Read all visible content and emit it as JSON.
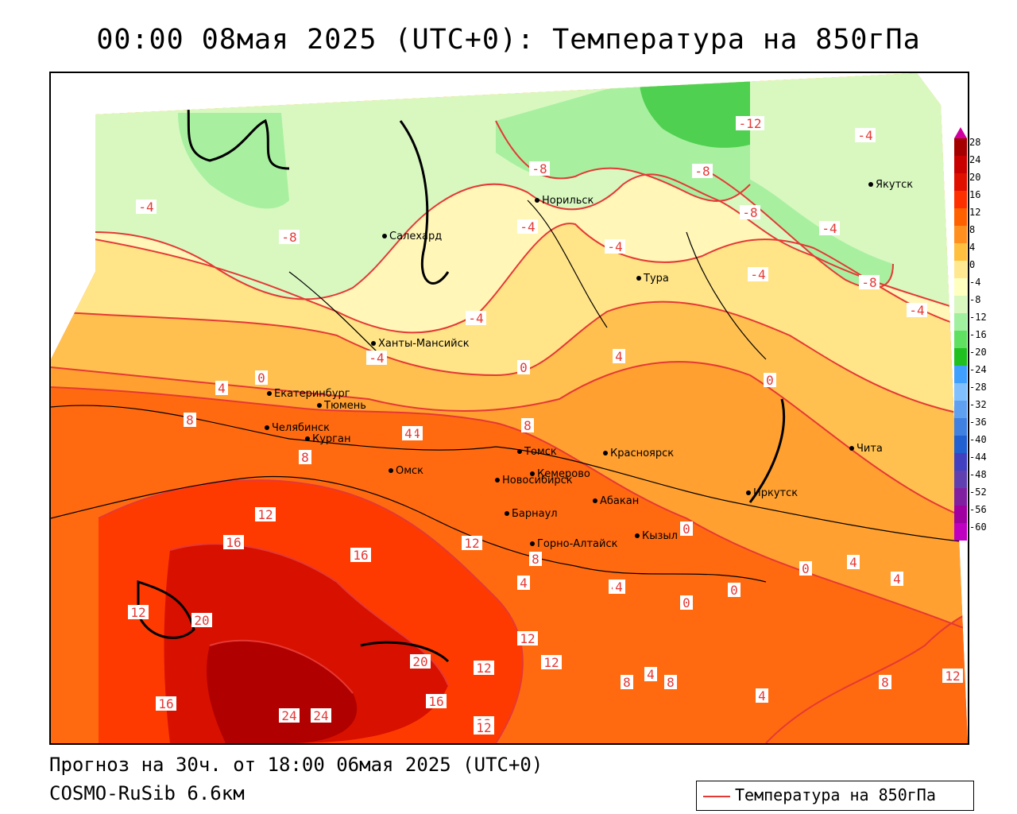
{
  "title": "00:00 08мая 2025 (UTC+0): Температура на 850гПа",
  "footer": {
    "forecast": "Прогноз на 30ч. от 18:00 06мая 2025 (UTC+0)",
    "model": "COSMO-RuSib 6.6км"
  },
  "legend": {
    "label": "Температура на 850гПа",
    "line_color": "#e53935"
  },
  "colorbar": {
    "ticks": [
      "28",
      "24",
      "20",
      "16",
      "12",
      "8",
      "4",
      "0",
      "-4",
      "-8",
      "-12",
      "-16",
      "-20",
      "-24",
      "-28",
      "-32",
      "-36",
      "-40",
      "-44",
      "-48",
      "-52",
      "-56",
      "-60"
    ],
    "colors": [
      "#a50000",
      "#c80000",
      "#e01000",
      "#ff3000",
      "#ff6000",
      "#ff9020",
      "#ffc040",
      "#ffe890",
      "#ffffc0",
      "#d8f8c0",
      "#a0f0a0",
      "#60e060",
      "#20c020",
      "#40a0ff",
      "#80c0ff",
      "#60a0f0",
      "#4080e0",
      "#2060d0",
      "#4040c0",
      "#6040b0",
      "#8020a0",
      "#a000a0",
      "#c000c0"
    ]
  },
  "contour_labels": [
    "-12",
    "-8",
    "-8",
    "-8",
    "-8",
    "-4",
    "-4",
    "-4",
    "-4",
    "-4",
    "-4",
    "-4",
    "-4",
    "-8",
    "-8",
    "-4",
    "0",
    "4",
    "0",
    "0",
    "4",
    "4",
    "8",
    "8",
    "4",
    "8",
    "12",
    "16",
    "16",
    "12",
    "12",
    "20",
    "20",
    "24",
    "24",
    "16",
    "12",
    "16",
    "12",
    "12",
    "12",
    "8",
    "4",
    "4",
    "0",
    "0",
    "4",
    "0",
    "4",
    "0",
    "8",
    "4",
    "8",
    "4",
    "4",
    "8",
    "12",
    "12",
    "16",
    "12"
  ],
  "cities": [
    "Якутск",
    "Норильск",
    "Салехард",
    "Тура",
    "Ханты-Мансийск",
    "Екатеринбург",
    "Тюмень",
    "Челябинск",
    "Курган",
    "Омск",
    "Новосибирск",
    "Томск",
    "Кемерово",
    "Красноярск",
    "Барнаул",
    "Абакан",
    "Горно-Алтайск",
    "Кызыл",
    "Иркутск",
    "Чита"
  ]
}
